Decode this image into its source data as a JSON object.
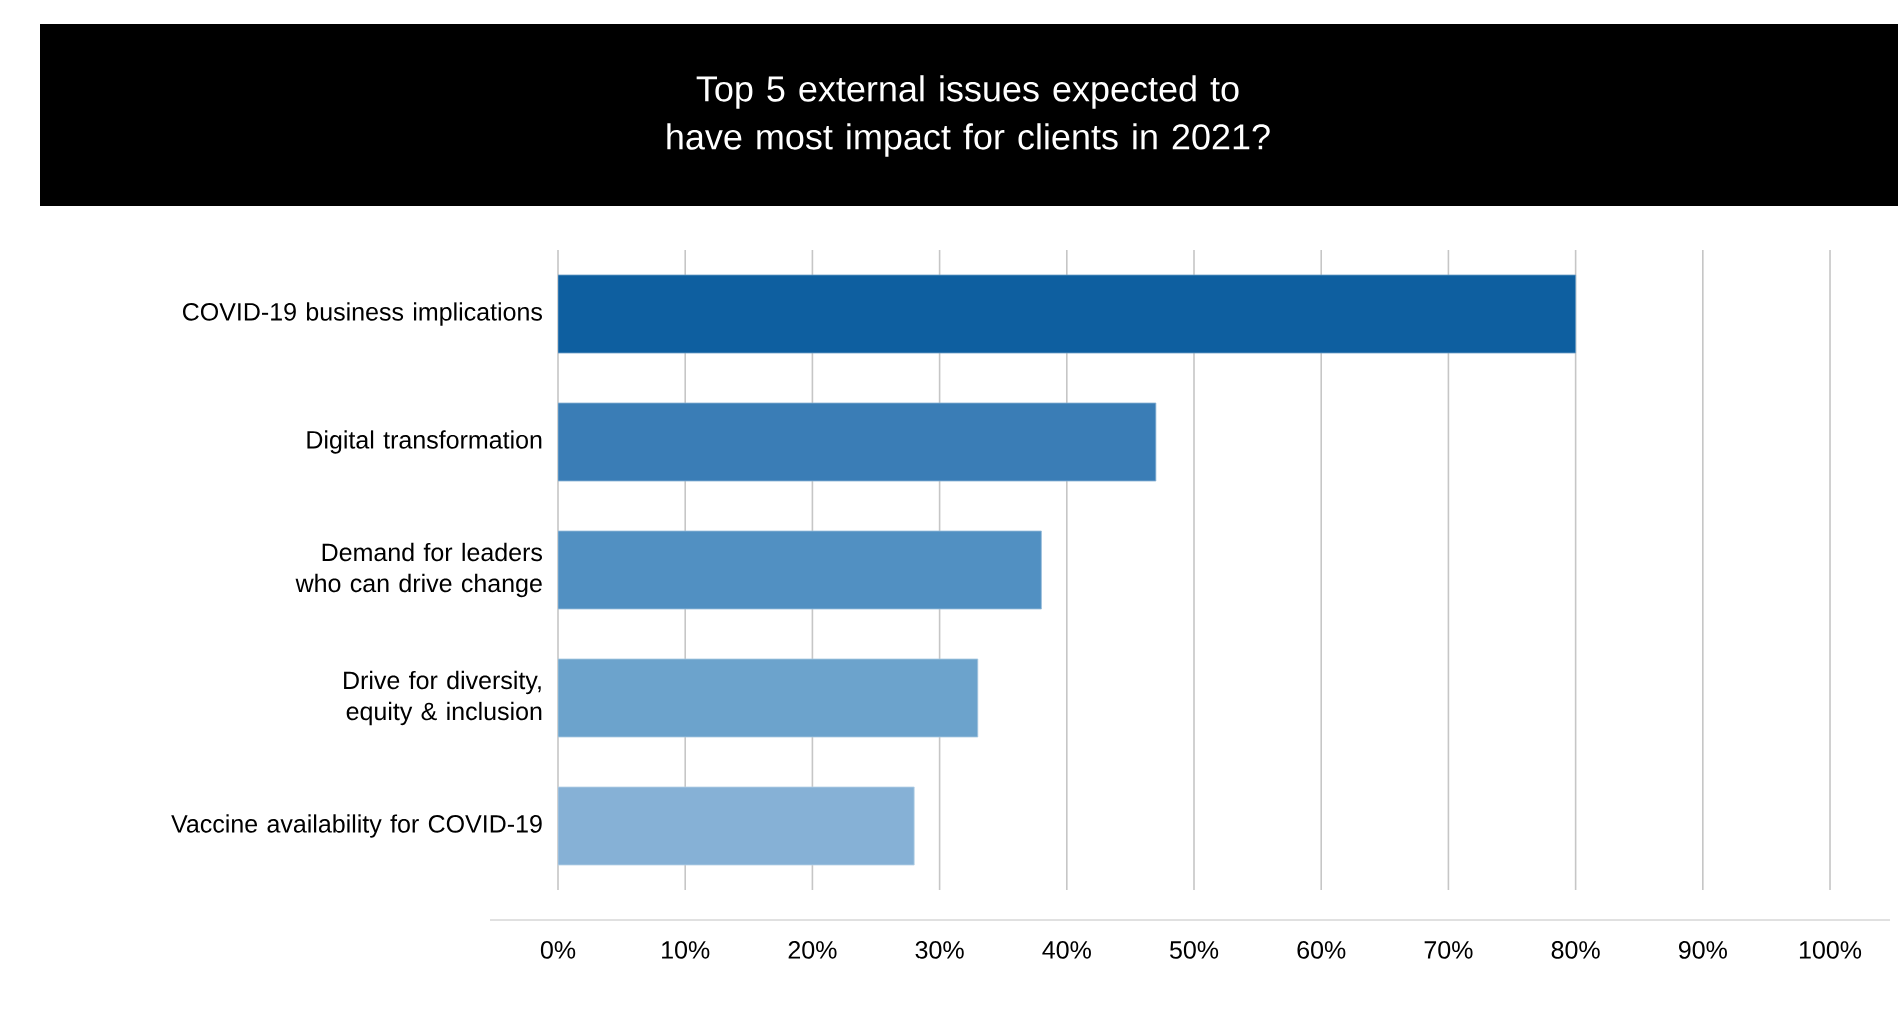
{
  "chart_data": {
    "type": "bar",
    "orientation": "horizontal",
    "title": "Top 5 external issues expected to have most impact for clients in 2021?",
    "categories": [
      "COVID-19 business implications",
      "Digital transformation",
      "Demand for leaders who can drive change",
      "Drive for diversity, equity & inclusion",
      "Vaccine availability for COVID-19"
    ],
    "values": [
      80,
      47,
      38,
      33,
      28
    ],
    "colors": [
      "#0e5fa0",
      "#3a7db6",
      "#5190c2",
      "#6ca3cc",
      "#86b1d6"
    ],
    "xlim": [
      0,
      100
    ],
    "xticks": [
      {
        "value": 0,
        "label": "0%"
      },
      {
        "value": 10,
        "label": "10%"
      },
      {
        "value": 20,
        "label": "20%"
      },
      {
        "value": 30,
        "label": "30%"
      },
      {
        "value": 40,
        "label": "40%"
      },
      {
        "value": 50,
        "label": "50%"
      },
      {
        "value": 60,
        "label": "60%"
      },
      {
        "value": 70,
        "label": "70%"
      },
      {
        "value": 80,
        "label": "80%"
      },
      {
        "value": 90,
        "label": "90%"
      },
      {
        "value": 100,
        "label": "100%"
      }
    ],
    "grid": "x"
  }
}
